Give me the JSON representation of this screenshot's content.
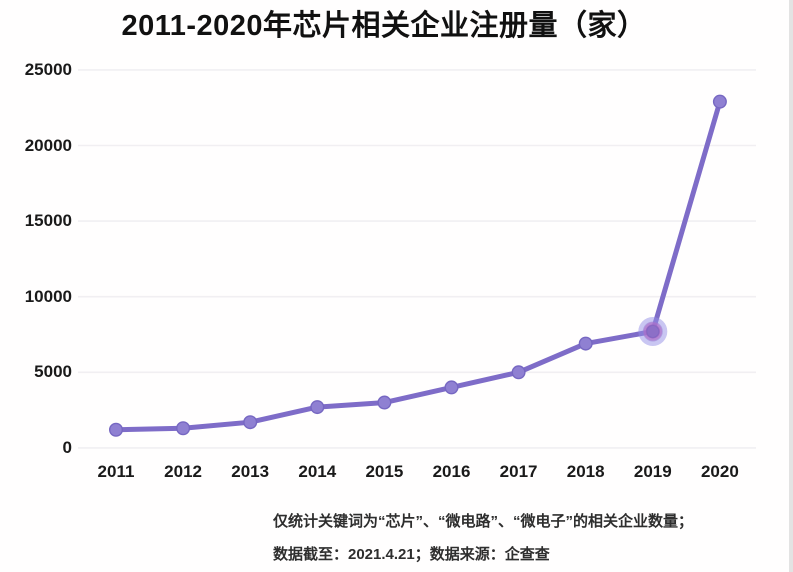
{
  "title": "2011-2020年芯片相关企业注册量（家）",
  "chart_data": {
    "type": "line",
    "title": "2011-2020年芯片相关企业注册量（家）",
    "categories": [
      "2011",
      "2012",
      "2013",
      "2014",
      "2015",
      "2016",
      "2017",
      "2018",
      "2019",
      "2020"
    ],
    "values": [
      1200,
      1300,
      1700,
      2700,
      3000,
      4000,
      5000,
      6900,
      7700,
      22900
    ],
    "series_name": "芯片相关企业注册量",
    "xlabel": "",
    "ylabel": "",
    "yticks": [
      0,
      5000,
      10000,
      15000,
      20000,
      25000
    ],
    "ylim": [
      0,
      25000
    ],
    "grid": true,
    "legend": false,
    "highlighted_category": "2019",
    "colors": {
      "line": "#7e6cc8",
      "marker_fill": "#8f80d2",
      "marker_stroke": "#7667c2",
      "grid": "#f1eff2",
      "highlight_glow": "rgba(148,142,230,0.50)",
      "highlight_mid": "rgba(150,125,214,0.55)",
      "highlight_ring": "rgba(186,104,196,0.45)",
      "highlight_core": "#8d6fc7",
      "text": "#1a1a1a",
      "edge_strip": "#e3e3e3"
    }
  },
  "footnotes": {
    "line1": "仅统计关键词为“芯片”、“微电路”、“微电子”的相关企业数量；",
    "line2": "数据截至：2021.4.21；数据来源：企查查"
  }
}
